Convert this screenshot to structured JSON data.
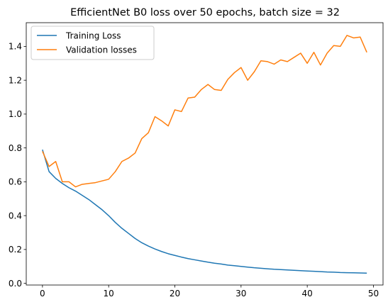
{
  "chart_data": {
    "type": "line",
    "title": "EfficientNet B0 loss over 50 epochs, batch size = 32",
    "xlabel": "",
    "ylabel": "",
    "xlim": [
      -2.45,
      51.45
    ],
    "ylim": [
      -0.01,
      1.54
    ],
    "xticks": [
      0,
      10,
      20,
      30,
      40,
      50
    ],
    "yticks": [
      0.0,
      0.2,
      0.4,
      0.6,
      0.8,
      1.0,
      1.2,
      1.4
    ],
    "xtick_labels": [
      "0",
      "10",
      "20",
      "30",
      "40",
      "50"
    ],
    "ytick_labels": [
      "0.0",
      "0.2",
      "0.4",
      "0.6",
      "0.8",
      "1.0",
      "1.2",
      "1.4"
    ],
    "grid": false,
    "legend_position": "upper-left",
    "x": [
      0,
      1,
      2,
      3,
      4,
      5,
      6,
      7,
      8,
      9,
      10,
      11,
      12,
      13,
      14,
      15,
      16,
      17,
      18,
      19,
      20,
      21,
      22,
      23,
      24,
      25,
      26,
      27,
      28,
      29,
      30,
      31,
      32,
      33,
      34,
      35,
      36,
      37,
      38,
      39,
      40,
      41,
      42,
      43,
      44,
      45,
      46,
      47,
      48,
      49
    ],
    "series": [
      {
        "name": "Training Loss",
        "color": "#1f77b4",
        "values": [
          0.79,
          0.66,
          0.62,
          0.59,
          0.565,
          0.545,
          0.52,
          0.495,
          0.465,
          0.435,
          0.4,
          0.36,
          0.325,
          0.295,
          0.265,
          0.24,
          0.22,
          0.203,
          0.188,
          0.175,
          0.165,
          0.155,
          0.146,
          0.139,
          0.132,
          0.125,
          0.119,
          0.114,
          0.108,
          0.104,
          0.1,
          0.096,
          0.092,
          0.089,
          0.086,
          0.083,
          0.081,
          0.079,
          0.077,
          0.075,
          0.073,
          0.071,
          0.069,
          0.067,
          0.066,
          0.064,
          0.063,
          0.062,
          0.061,
          0.06
        ]
      },
      {
        "name": "Validation losses",
        "color": "#ff7f0e",
        "values": [
          0.78,
          0.69,
          0.72,
          0.6,
          0.6,
          0.57,
          0.585,
          0.59,
          0.595,
          0.605,
          0.615,
          0.66,
          0.72,
          0.74,
          0.77,
          0.855,
          0.89,
          0.985,
          0.96,
          0.93,
          1.025,
          1.015,
          1.095,
          1.1,
          1.145,
          1.175,
          1.145,
          1.14,
          1.205,
          1.245,
          1.275,
          1.2,
          1.25,
          1.315,
          1.31,
          1.295,
          1.32,
          1.31,
          1.335,
          1.36,
          1.3,
          1.365,
          1.29,
          1.36,
          1.405,
          1.4,
          1.465,
          1.45,
          1.455,
          1.365
        ]
      }
    ]
  }
}
